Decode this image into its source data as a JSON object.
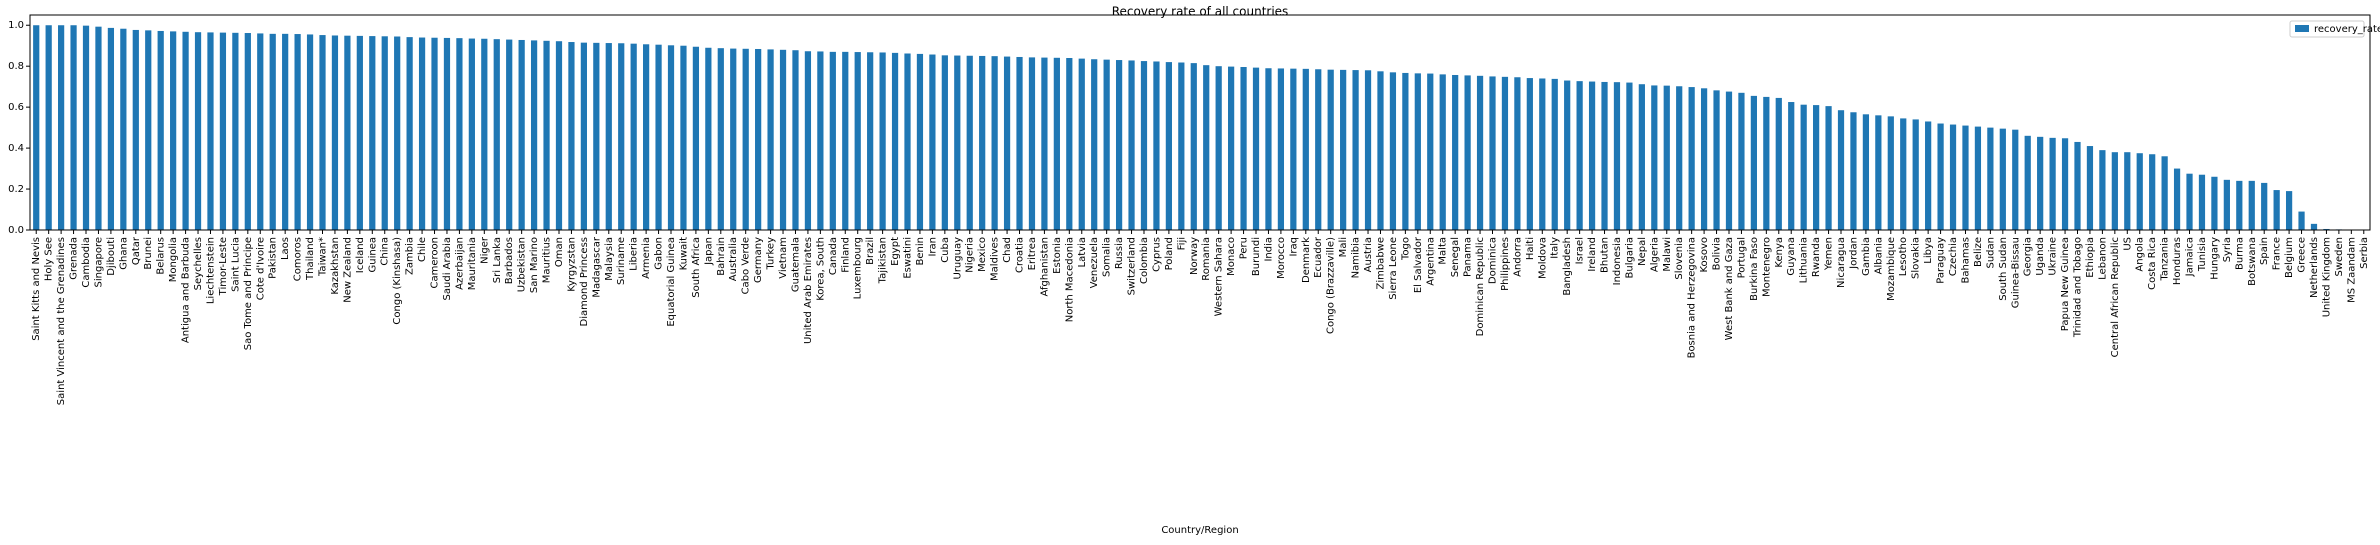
{
  "chart_data": {
    "type": "bar",
    "title": "Recovery rate of all countries",
    "x_label": "Country/Region",
    "categories": [
      "Saint Kitts and Nevis",
      "Holy See",
      "Saint Vincent and the Grenadines",
      "Grenada",
      "Cambodia",
      "Singapore",
      "Djibouti",
      "Ghana",
      "Qatar",
      "Brunei",
      "Belarus",
      "Mongolia",
      "Antigua and Barbuda",
      "Seychelles",
      "Liechtenstein",
      "Timor-Leste",
      "Saint Lucia",
      "Sao Tome and Principe",
      "Cote d'Ivoire",
      "Pakistan",
      "Laos",
      "Comoros",
      "Thailand",
      "Taiwan*",
      "Kazakhstan",
      "New Zealand",
      "Iceland",
      "Guinea",
      "China",
      "Congo (Kinshasa)",
      "Zambia",
      "Chile",
      "Cameroon",
      "Saudi Arabia",
      "Azerbaijan",
      "Mauritania",
      "Niger",
      "Sri Lanka",
      "Barbados",
      "Uzbekistan",
      "San Marino",
      "Mauritius",
      "Oman",
      "Kyrgyzstan",
      "Diamond Princess",
      "Madagascar",
      "Malaysia",
      "Suriname",
      "Liberia",
      "Armenia",
      "Gabon",
      "Equatorial Guinea",
      "Kuwait",
      "South Africa",
      "Japan",
      "Bahrain",
      "Australia",
      "Cabo Verde",
      "Germany",
      "Turkey",
      "Vietnam",
      "Guatemala",
      "United Arab Emirates",
      "Korea, South",
      "Canada",
      "Finland",
      "Luxembourg",
      "Brazil",
      "Tajikistan",
      "Egypt",
      "Eswatini",
      "Benin",
      "Iran",
      "Cuba",
      "Uruguay",
      "Nigeria",
      "Mexico",
      "Maldives",
      "Chad",
      "Croatia",
      "Eritrea",
      "Afghanistan",
      "Estonia",
      "North Macedonia",
      "Latvia",
      "Venezuela",
      "Somalia",
      "Russia",
      "Switzerland",
      "Colombia",
      "Cyprus",
      "Poland",
      "Fiji",
      "Norway",
      "Romania",
      "Western Sahara",
      "Monaco",
      "Peru",
      "Burundi",
      "India",
      "Morocco",
      "Iraq",
      "Denmark",
      "Ecuador",
      "Congo (Brazzaville)",
      "Mali",
      "Namibia",
      "Austria",
      "Zimbabwe",
      "Sierra Leone",
      "Togo",
      "El Salvador",
      "Argentina",
      "Malta",
      "Senegal",
      "Panama",
      "Dominican Republic",
      "Dominica",
      "Philippines",
      "Andorra",
      "Haiti",
      "Moldova",
      "Italy",
      "Bangladesh",
      "Israel",
      "Ireland",
      "Bhutan",
      "Indonesia",
      "Bulgaria",
      "Nepal",
      "Algeria",
      "Malawi",
      "Slovenia",
      "Bosnia and Herzegovina",
      "Kosovo",
      "Bolivia",
      "West Bank and Gaza",
      "Portugal",
      "Burkina Faso",
      "Montenegro",
      "Kenya",
      "Guyana",
      "Lithuania",
      "Rwanda",
      "Yemen",
      "Nicaragua",
      "Jordan",
      "Gambia",
      "Albania",
      "Mozambique",
      "Lesotho",
      "Slovakia",
      "Libya",
      "Paraguay",
      "Czechia",
      "Bahamas",
      "Belize",
      "Sudan",
      "South Sudan",
      "Guinea-Bissau",
      "Georgia",
      "Uganda",
      "Ukraine",
      "Papua New Guinea",
      "Trinidad and Tobago",
      "Ethiopia",
      "Lebanon",
      "Central African Republic",
      "US",
      "Angola",
      "Costa Rica",
      "Tanzania",
      "Honduras",
      "Jamaica",
      "Tunisia",
      "Hungary",
      "Syria",
      "Burma",
      "Botswana",
      "Spain",
      "France",
      "Belgium",
      "Greece",
      "Netherlands",
      "United Kingdom",
      "Sweden",
      "MS Zaandam",
      "Serbia"
    ],
    "series": [
      {
        "name": "recovery_rate",
        "color": "#1f77b4",
        "values": [
          1.0,
          1.0,
          1.0,
          1.0,
          0.998,
          0.993,
          0.987,
          0.983,
          0.977,
          0.975,
          0.972,
          0.97,
          0.968,
          0.966,
          0.965,
          0.964,
          0.963,
          0.962,
          0.96,
          0.958,
          0.958,
          0.957,
          0.955,
          0.952,
          0.95,
          0.949,
          0.948,
          0.947,
          0.946,
          0.945,
          0.942,
          0.94,
          0.939,
          0.938,
          0.937,
          0.935,
          0.934,
          0.932,
          0.93,
          0.928,
          0.926,
          0.924,
          0.922,
          0.918,
          0.915,
          0.914,
          0.913,
          0.912,
          0.91,
          0.907,
          0.905,
          0.902,
          0.9,
          0.895,
          0.89,
          0.888,
          0.886,
          0.885,
          0.884,
          0.882,
          0.88,
          0.878,
          0.873,
          0.872,
          0.87,
          0.87,
          0.869,
          0.868,
          0.867,
          0.865,
          0.862,
          0.86,
          0.857,
          0.853,
          0.852,
          0.851,
          0.85,
          0.849,
          0.847,
          0.845,
          0.843,
          0.842,
          0.841,
          0.84,
          0.837,
          0.834,
          0.832,
          0.83,
          0.828,
          0.825,
          0.823,
          0.82,
          0.818,
          0.815,
          0.805,
          0.8,
          0.798,
          0.796,
          0.793,
          0.79,
          0.789,
          0.788,
          0.787,
          0.785,
          0.783,
          0.782,
          0.781,
          0.78,
          0.775,
          0.77,
          0.767,
          0.765,
          0.764,
          0.76,
          0.757,
          0.755,
          0.753,
          0.75,
          0.748,
          0.746,
          0.742,
          0.74,
          0.738,
          0.73,
          0.727,
          0.725,
          0.723,
          0.722,
          0.72,
          0.712,
          0.706,
          0.705,
          0.702,
          0.698,
          0.692,
          0.682,
          0.676,
          0.67,
          0.655,
          0.65,
          0.645,
          0.625,
          0.612,
          0.61,
          0.605,
          0.585,
          0.575,
          0.565,
          0.56,
          0.555,
          0.545,
          0.54,
          0.53,
          0.52,
          0.515,
          0.51,
          0.505,
          0.5,
          0.495,
          0.49,
          0.46,
          0.455,
          0.45,
          0.448,
          0.43,
          0.41,
          0.39,
          0.38,
          0.38,
          0.375,
          0.37,
          0.36,
          0.3,
          0.275,
          0.27,
          0.26,
          0.245,
          0.24,
          0.24,
          0.23,
          0.195,
          0.19,
          0.09,
          0.03,
          0.005,
          0.003,
          0,
          0
        ]
      }
    ],
    "ylim": [
      0,
      1.05
    ],
    "yticks": [
      {
        "value": 0,
        "label": "0.0"
      },
      0.2,
      0.4,
      0.6,
      0.8,
      {
        "value": 1,
        "label": "1.0"
      }
    ],
    "legend": "upper right"
  }
}
